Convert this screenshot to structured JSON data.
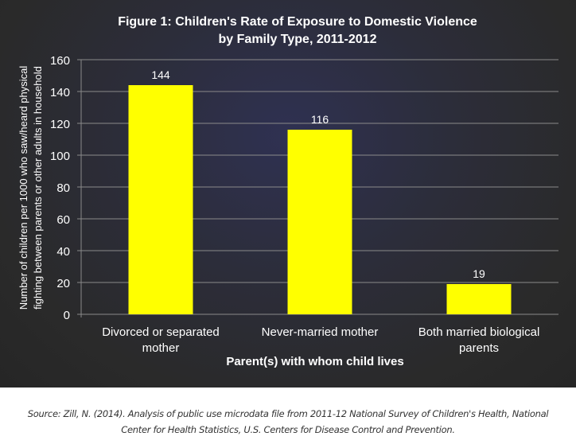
{
  "chart_data": {
    "type": "bar",
    "title": [
      "Figure 1: Children's Rate of Exposure to Domestic Violence",
      "by Family Type,  2011-2012"
    ],
    "categories": [
      [
        "Divorced or separated",
        "mother"
      ],
      [
        "Never-married mother"
      ],
      [
        "Both married biological",
        "parents"
      ]
    ],
    "values": [
      144,
      116,
      19
    ],
    "data_labels": [
      "144",
      "116",
      "19"
    ],
    "xlabel": "Parent(s) with whom child lives",
    "ylabel": [
      "Number of children per 1000 who saw/heard physical",
      "fighting between parents or other adults in household"
    ],
    "ylim": [
      0,
      160
    ],
    "yticks": [
      0,
      20,
      40,
      60,
      80,
      100,
      120,
      140,
      160
    ],
    "grid": true,
    "bar_color": "#ffff00",
    "background": "#2a2a2a"
  },
  "source": [
    "Source: Zill, N. (2014). Analysis of public use microdata file from 2011-12 National Survey of Children's Health, National",
    "Center for Health Statistics, U.S. Centers for Disease Control and Prevention."
  ]
}
